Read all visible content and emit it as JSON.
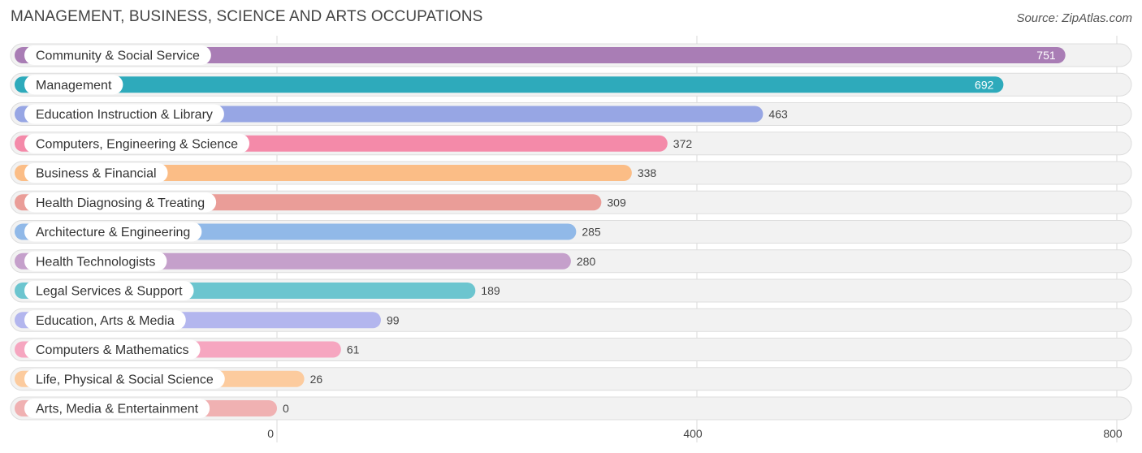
{
  "page": {
    "title": "MANAGEMENT, BUSINESS, SCIENCE AND ARTS OCCUPATIONS",
    "source": "Source: ZipAtlas.com"
  },
  "chart_data": {
    "type": "bar",
    "orientation": "horizontal",
    "title": "MANAGEMENT, BUSINESS, SCIENCE AND ARTS OCCUPATIONS",
    "categories": [
      "Community & Social Service",
      "Management",
      "Education Instruction & Library",
      "Computers, Engineering & Science",
      "Business & Financial",
      "Health Diagnosing & Treating",
      "Architecture & Engineering",
      "Health Technologists",
      "Legal Services & Support",
      "Education, Arts & Media",
      "Computers & Mathematics",
      "Life, Physical & Social Science",
      "Arts, Media & Entertainment"
    ],
    "values": [
      751,
      692,
      463,
      372,
      338,
      309,
      285,
      280,
      189,
      99,
      61,
      26,
      0
    ],
    "value_labels": [
      "751",
      "692",
      "463",
      "372",
      "338",
      "309",
      "285",
      "280",
      "189",
      "99",
      "61",
      "26",
      "0"
    ],
    "colors": [
      "#a97db5",
      "#2eaabb",
      "#97a6e4",
      "#f48aa9",
      "#fbbd86",
      "#ea9d98",
      "#91b9e8",
      "#c5a0cb",
      "#6cc5cf",
      "#b3b6ee",
      "#f6a6c0",
      "#fccb9e",
      "#f0b1b2"
    ],
    "xlim": [
      0,
      800
    ],
    "xticks": [
      0,
      400,
      800
    ],
    "xtick_labels": [
      "0",
      "400",
      "800"
    ],
    "grid": true,
    "xlabel": "",
    "ylabel": ""
  }
}
